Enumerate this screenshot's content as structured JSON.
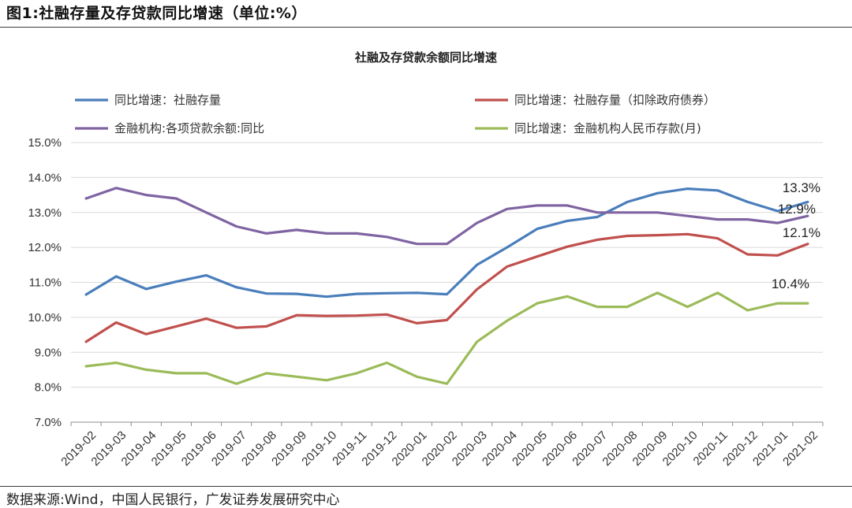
{
  "header": {
    "figure_title": "图1:社融存量及存贷款同比增速（单位:%）"
  },
  "footer": {
    "source": "数据来源:Wind，中国人民银行，广发证券发展研究中心"
  },
  "chart_data": {
    "type": "line",
    "title": "社融及存贷款余额同比增速",
    "xlabel": "",
    "ylabel": "",
    "ylim": [
      7.0,
      15.0
    ],
    "ytick_step": 1.0,
    "ytick_format": "percent_1dp",
    "grid": "horizontal",
    "legend_position": "top",
    "categories": [
      "2019-02",
      "2019-03",
      "2019-04",
      "2019-05",
      "2019-06",
      "2019-07",
      "2019-08",
      "2019-09",
      "2019-10",
      "2019-11",
      "2019-12",
      "2020-01",
      "2020-02",
      "2020-03",
      "2020-04",
      "2020-05",
      "2020-06",
      "2020-07",
      "2020-08",
      "2020-09",
      "2020-10",
      "2020-11",
      "2020-12",
      "2021-01",
      "2021-02"
    ],
    "series": [
      {
        "name": "同比增速：社融存量",
        "color": "#4a7ebb",
        "values": [
          10.65,
          11.17,
          10.81,
          11.02,
          11.2,
          10.86,
          10.68,
          10.67,
          10.59,
          10.67,
          10.69,
          10.7,
          10.66,
          11.5,
          12.0,
          12.53,
          12.76,
          12.87,
          13.3,
          13.55,
          13.68,
          13.63,
          13.3,
          13.04,
          13.3
        ],
        "end_label": "13.3%"
      },
      {
        "name": "同比增速：社融存量（扣除政府债券）",
        "color": "#c0504d",
        "values": [
          9.3,
          9.85,
          9.52,
          9.74,
          9.96,
          9.7,
          9.74,
          10.06,
          10.04,
          10.05,
          10.08,
          9.83,
          9.92,
          10.8,
          11.45,
          11.74,
          12.02,
          12.22,
          12.33,
          12.35,
          12.38,
          12.26,
          11.8,
          11.77,
          12.1
        ],
        "end_label": "12.1%"
      },
      {
        "name": "金融机构:各项贷款余额:同比",
        "color": "#8064a2",
        "values": [
          13.4,
          13.7,
          13.5,
          13.4,
          13.0,
          12.6,
          12.4,
          12.5,
          12.4,
          12.4,
          12.3,
          12.1,
          12.1,
          12.7,
          13.1,
          13.2,
          13.2,
          13.0,
          13.0,
          13.0,
          12.9,
          12.8,
          12.8,
          12.7,
          12.9
        ],
        "end_label": "12.9%"
      },
      {
        "name": "同比增速：金融机构人民币存款(月)",
        "color": "#9bbb59",
        "values": [
          8.6,
          8.7,
          8.5,
          8.4,
          8.4,
          8.1,
          8.4,
          8.3,
          8.2,
          8.4,
          8.7,
          8.3,
          8.1,
          9.3,
          9.9,
          10.4,
          10.6,
          10.3,
          10.3,
          10.7,
          10.3,
          10.7,
          10.2,
          10.4,
          10.4
        ],
        "end_label": "10.4%"
      }
    ]
  }
}
